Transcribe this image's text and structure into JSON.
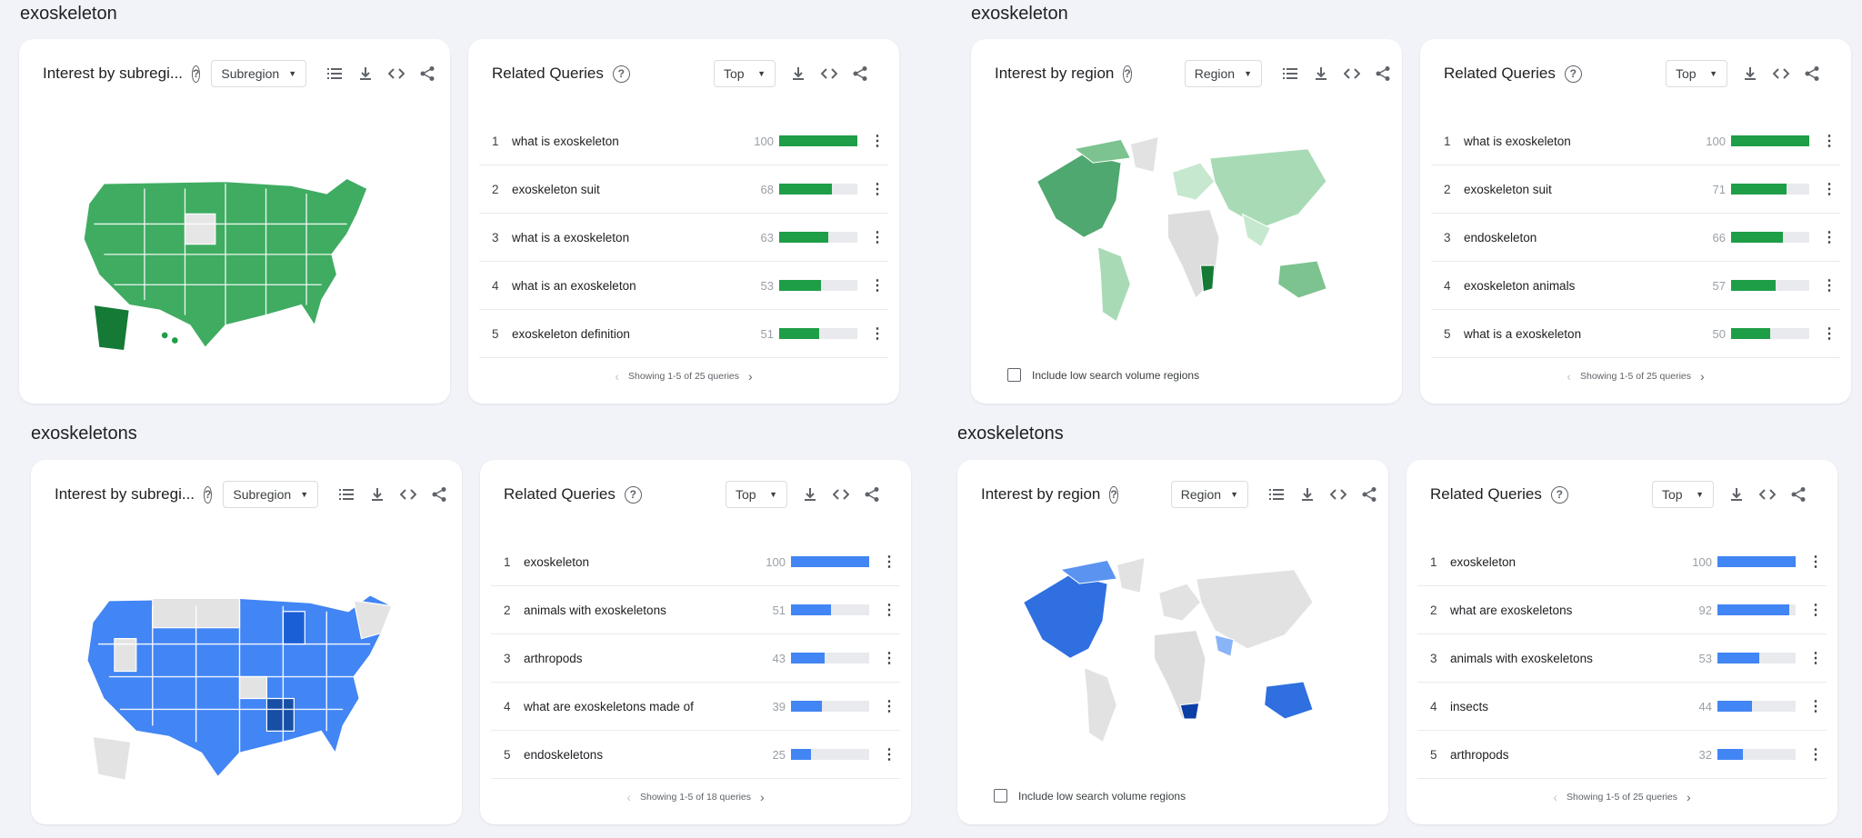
{
  "colors": {
    "green": "#1e9e47",
    "blue": "#4285f4"
  },
  "panels": [
    {
      "term": "exoskeleton",
      "map": {
        "title": "Interest by subregi...",
        "dropdown": "Subregion"
      },
      "related": {
        "title": "Related Queries",
        "dropdown": "Top",
        "pager": "Showing 1-5 of 25 queries",
        "rows": [
          {
            "rank": "1",
            "text": "what is exoskeleton",
            "value": "100"
          },
          {
            "rank": "2",
            "text": "exoskeleton suit",
            "value": "68"
          },
          {
            "rank": "3",
            "text": "what is a exoskeleton",
            "value": "63"
          },
          {
            "rank": "4",
            "text": "what is an exoskeleton",
            "value": "53"
          },
          {
            "rank": "5",
            "text": "exoskeleton definition",
            "value": "51"
          }
        ]
      }
    },
    {
      "term": "exoskeleton",
      "map": {
        "title": "Interest by region",
        "dropdown": "Region",
        "lowvol": "Include low search volume regions"
      },
      "related": {
        "title": "Related Queries",
        "dropdown": "Top",
        "pager": "Showing 1-5 of 25 queries",
        "rows": [
          {
            "rank": "1",
            "text": "what is exoskeleton",
            "value": "100"
          },
          {
            "rank": "2",
            "text": "exoskeleton suit",
            "value": "71"
          },
          {
            "rank": "3",
            "text": "endoskeleton",
            "value": "66"
          },
          {
            "rank": "4",
            "text": "exoskeleton animals",
            "value": "57"
          },
          {
            "rank": "5",
            "text": "what is a exoskeleton",
            "value": "50"
          }
        ]
      }
    },
    {
      "term": "exoskeletons",
      "map": {
        "title": "Interest by subregi...",
        "dropdown": "Subregion"
      },
      "related": {
        "title": "Related Queries",
        "dropdown": "Top",
        "pager": "Showing 1-5 of 18 queries",
        "rows": [
          {
            "rank": "1",
            "text": "exoskeleton",
            "value": "100"
          },
          {
            "rank": "2",
            "text": "animals with exoskeletons",
            "value": "51"
          },
          {
            "rank": "3",
            "text": "arthropods",
            "value": "43"
          },
          {
            "rank": "4",
            "text": "what are exoskeletons made of",
            "value": "39"
          },
          {
            "rank": "5",
            "text": "endoskeletons",
            "value": "25"
          }
        ]
      }
    },
    {
      "term": "exoskeletons",
      "map": {
        "title": "Interest by region",
        "dropdown": "Region",
        "lowvol": "Include low search volume regions"
      },
      "related": {
        "title": "Related Queries",
        "dropdown": "Top",
        "pager": "Showing 1-5 of 25 queries",
        "rows": [
          {
            "rank": "1",
            "text": "exoskeleton",
            "value": "100"
          },
          {
            "rank": "2",
            "text": "what are exoskeletons",
            "value": "92"
          },
          {
            "rank": "3",
            "text": "animals with exoskeletons",
            "value": "53"
          },
          {
            "rank": "4",
            "text": "insects",
            "value": "44"
          },
          {
            "rank": "5",
            "text": "arthropods",
            "value": "32"
          }
        ]
      }
    }
  ]
}
